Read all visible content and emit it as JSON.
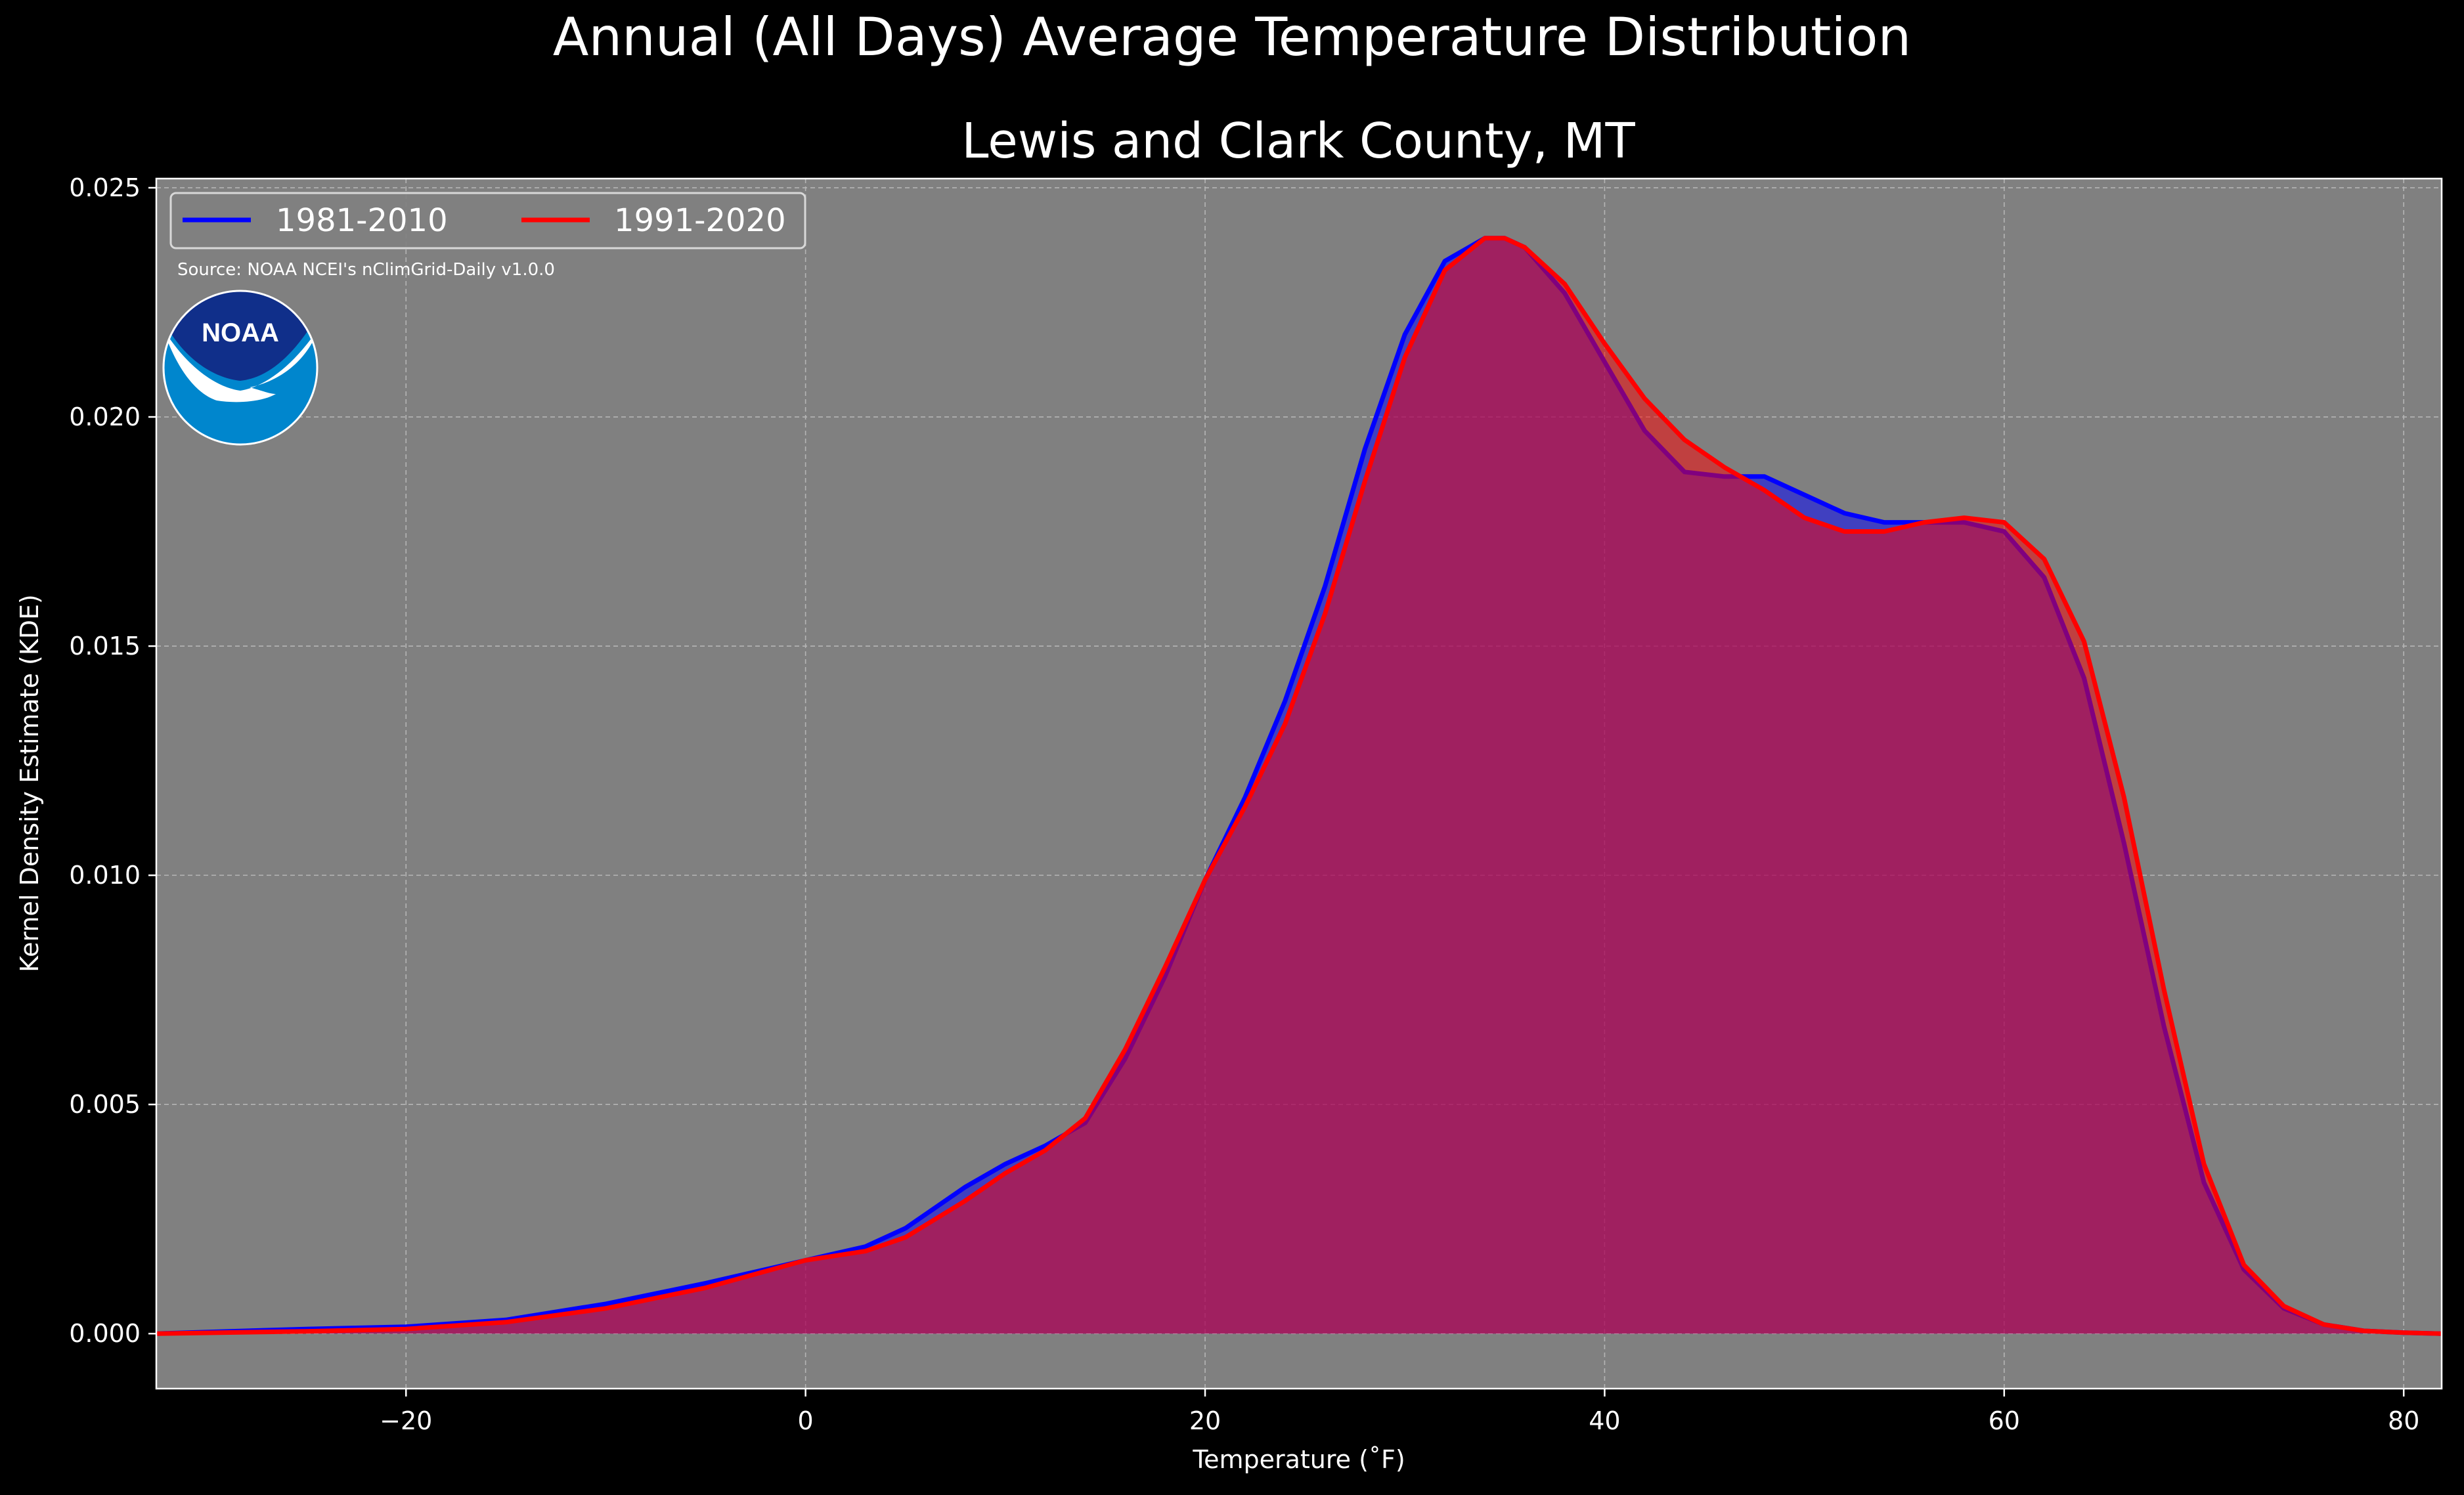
{
  "chart_data": {
    "type": "area",
    "title": "Annual (All Days) Average Temperature Distribution",
    "subtitle": "Lewis and Clark County, MT",
    "xlabel": "Temperature (˚F)",
    "ylabel": "Kernel Density Estimate (KDE)",
    "xlim": [
      -32.5,
      81.9
    ],
    "ylim": [
      -0.0012,
      0.0252
    ],
    "xticks": [
      -20,
      0,
      20,
      40,
      60,
      80
    ],
    "xtick_labels": [
      "−20",
      "0",
      "20",
      "40",
      "60",
      "80"
    ],
    "yticks": [
      0,
      0.005,
      0.01,
      0.015,
      0.02,
      0.025
    ],
    "ytick_labels": [
      "0.000",
      "0.005",
      "0.010",
      "0.015",
      "0.020",
      "0.025"
    ],
    "grid": true,
    "legend_position": "top-left",
    "source_note": "Source: NOAA NCEI's nClimGrid-Daily v1.0.0",
    "logo_text": "NOAA",
    "series": [
      {
        "name": "1981-2010",
        "color": "#0000ff",
        "fill": "rgba(0,0,255,0.5)",
        "x": [
          -32.5,
          -25,
          -20,
          -15,
          -10,
          -5,
          0,
          3,
          5,
          8,
          10,
          12,
          14,
          16,
          18,
          20,
          22,
          24,
          26,
          28,
          30,
          32,
          34,
          35,
          36,
          38,
          40,
          42,
          44,
          46,
          48,
          50,
          52,
          54,
          56,
          58,
          60,
          62,
          64,
          66,
          68,
          70,
          72,
          74,
          76,
          78,
          80,
          81.9
        ],
        "y": [
          0.0,
          0.0001,
          0.00015,
          0.0003,
          0.00065,
          0.0011,
          0.0016,
          0.0019,
          0.0023,
          0.0032,
          0.0037,
          0.0041,
          0.0046,
          0.006,
          0.0078,
          0.0099,
          0.0117,
          0.0138,
          0.0163,
          0.0193,
          0.0218,
          0.0234,
          0.0239,
          0.0239,
          0.0237,
          0.0227,
          0.0212,
          0.0197,
          0.0188,
          0.0187,
          0.0187,
          0.0183,
          0.0179,
          0.0177,
          0.0177,
          0.0177,
          0.0175,
          0.0165,
          0.0143,
          0.0107,
          0.0067,
          0.0033,
          0.0014,
          0.00055,
          0.0002,
          6e-05,
          2e-05,
          0.0
        ]
      },
      {
        "name": "1991-2020",
        "color": "#ff0000",
        "fill": "rgba(255,0,0,0.5)",
        "x": [
          -32.5,
          -25,
          -20,
          -15,
          -10,
          -5,
          0,
          3,
          5,
          8,
          10,
          12,
          14,
          16,
          18,
          20,
          22,
          24,
          26,
          28,
          30,
          32,
          34,
          35,
          36,
          38,
          40,
          42,
          44,
          46,
          48,
          50,
          52,
          54,
          56,
          58,
          60,
          62,
          64,
          66,
          68,
          70,
          72,
          74,
          76,
          78,
          80,
          81.9
        ],
        "y": [
          0.0,
          5e-05,
          0.0001,
          0.00025,
          0.00055,
          0.001,
          0.0016,
          0.0018,
          0.0021,
          0.0029,
          0.0035,
          0.004,
          0.0047,
          0.0062,
          0.008,
          0.0099,
          0.0115,
          0.0133,
          0.0157,
          0.0186,
          0.0213,
          0.0232,
          0.0239,
          0.0239,
          0.0237,
          0.0229,
          0.0216,
          0.0204,
          0.0195,
          0.0189,
          0.0184,
          0.0178,
          0.0175,
          0.0175,
          0.0177,
          0.0178,
          0.0177,
          0.0169,
          0.0151,
          0.0117,
          0.0075,
          0.0037,
          0.0015,
          0.0006,
          0.0002,
          6e-05,
          2e-05,
          0.0
        ]
      }
    ]
  }
}
